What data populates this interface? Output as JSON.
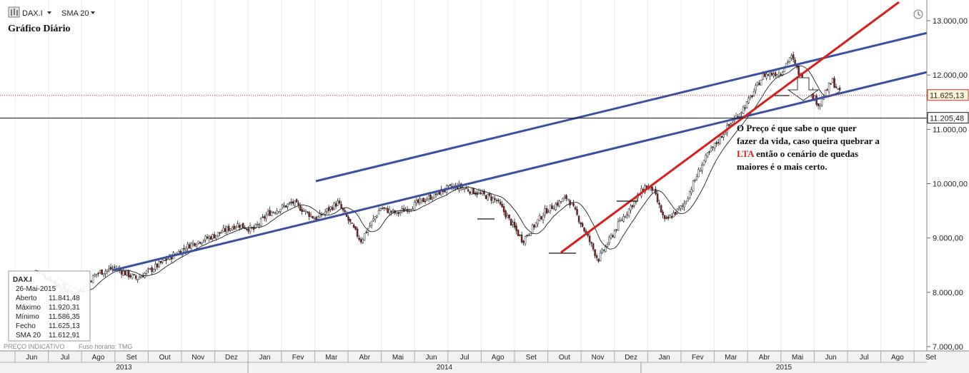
{
  "toolbar": {
    "symbol": "DAX.I",
    "indicator": "SMA 20"
  },
  "chart_title": "Gráfico Diário",
  "annotation": {
    "line1": "O Preço é que sabe o que quer",
    "line2": "fazer da vida, caso queira quebrar a",
    "line3_highlight": "LTA",
    "line3_rest": " então o cenário de quedas",
    "line4": "maiores é o mais certo."
  },
  "info_box": {
    "symbol": "DAX.I",
    "date": "26-Mai-2015",
    "rows": [
      {
        "label": "Aberto",
        "value": "11.841,48"
      },
      {
        "label": "Máximo",
        "value": "11.920,31"
      },
      {
        "label": "Mínimo",
        "value": "11.586,35"
      },
      {
        "label": "Fecho",
        "value": "11.625,13"
      },
      {
        "label": "SMA 20",
        "value": "11.612,91"
      }
    ]
  },
  "footer": {
    "left": "PREÇO INDICATIVO",
    "right": "Fuso horário: TMG"
  },
  "colors": {
    "channel": "#3a4fa0",
    "lta": "#d62020",
    "price_marker": "#c83232",
    "up_candle": "#ffffff",
    "down_candle": "#8b1a1a"
  },
  "chart_data": {
    "type": "line",
    "series": [
      {
        "x": [
          "2013-05-20",
          "2013-06-05",
          "2013-06-24",
          "2013-07-15",
          "2013-07-31",
          "2013-08-20",
          "2013-09-05",
          "2013-09-20",
          "2013-10-10",
          "2013-10-31",
          "2013-11-20",
          "2013-12-05",
          "2013-12-18",
          "2014-01-10",
          "2014-01-31",
          "2014-02-20",
          "2014-03-13",
          "2014-03-31",
          "2014-04-15",
          "2014-05-05",
          "2014-05-30",
          "2014-06-10",
          "2014-06-25",
          "2014-07-15",
          "2014-07-31",
          "2014-08-08",
          "2014-08-29",
          "2014-09-18",
          "2014-10-01",
          "2014-10-16",
          "2014-11-05",
          "2014-11-28",
          "2014-12-05",
          "2014-12-16",
          "2015-01-02",
          "2015-01-20",
          "2015-02-10",
          "2015-03-02",
          "2015-03-16",
          "2015-04-01",
          "2015-04-10",
          "2015-04-22",
          "2015-05-06",
          "2015-05-18",
          "2015-05-26"
        ],
        "values": [
          8400,
          8200,
          7950,
          8350,
          8450,
          8250,
          8450,
          8650,
          8900,
          9050,
          9250,
          9150,
          9450,
          9650,
          9350,
          9650,
          8950,
          9550,
          9450,
          9650,
          9900,
          9950,
          9850,
          9700,
          9200,
          8950,
          9500,
          9750,
          9250,
          8600,
          9300,
          9950,
          9900,
          9300,
          9600,
          10400,
          11000,
          11500,
          12000,
          12050,
          12350,
          11850,
          11450,
          11900,
          11625
        ]
      }
    ],
    "y_ticks": [
      "13.000,00",
      "12.000,00",
      "11.000,00",
      "10.000,00",
      "9.000,00",
      "8.000,00",
      "7.000,00"
    ],
    "x_ticks": [
      "Jun",
      "Jul",
      "Ago",
      "Set",
      "Out",
      "Nov",
      "Dez",
      "Jan",
      "Fev",
      "Mar",
      "Abr",
      "Mai",
      "Jun",
      "Jul",
      "Ago",
      "Set",
      "Out",
      "Nov",
      "Dez",
      "Jan",
      "Fev",
      "Mar",
      "Abr",
      "Mai",
      "Jun",
      "Jul",
      "Ago",
      "Set"
    ],
    "years": [
      "2013",
      "2014",
      "2015"
    ],
    "price_markers": [
      {
        "value": 11625.13,
        "label": "11.625,13",
        "style": "dotted"
      },
      {
        "value": 11205.48,
        "label": "11.205,48",
        "style": "solid"
      }
    ],
    "ylim": [
      7000,
      13000
    ],
    "sma_period": 20
  }
}
